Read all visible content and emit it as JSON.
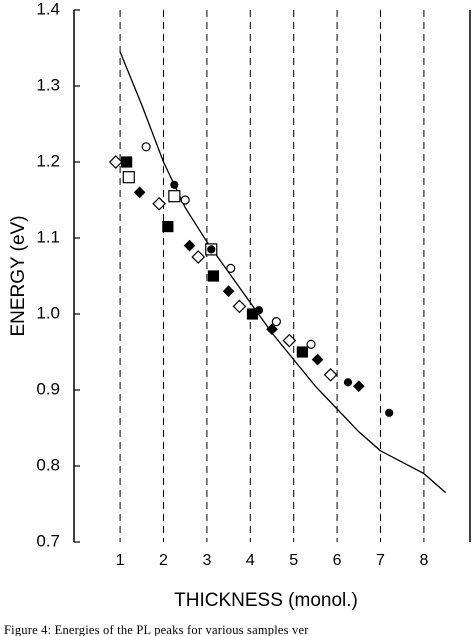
{
  "chart_data": {
    "type": "scatter",
    "title": "",
    "xlabel": "THICKNESS (monol.)",
    "ylabel": "ENERGY (eV)",
    "xlim": [
      0,
      8.5
    ],
    "ylim": [
      0.7,
      1.4
    ],
    "x_ticks": [
      "1",
      "2",
      "3",
      "4",
      "5",
      "6",
      "7",
      "8"
    ],
    "y_ticks": [
      "0.7",
      "0.8",
      "0.9",
      "1.0",
      "1.1",
      "1.2",
      "1.3",
      "1.4"
    ],
    "grid": "dashed vertical lines at each integer thickness",
    "series": [
      {
        "marker": "curve",
        "x": [
          1.0,
          1.5,
          2.0,
          2.5,
          3.0,
          3.5,
          4.0,
          4.5,
          5.0,
          5.5,
          6.0,
          6.5,
          7.0,
          7.5,
          8.0,
          8.5
        ],
        "y": [
          1.345,
          1.275,
          1.2,
          1.14,
          1.095,
          1.055,
          1.015,
          0.975,
          0.94,
          0.905,
          0.875,
          0.845,
          0.82,
          0.805,
          0.79,
          0.765
        ]
      },
      {
        "marker": "open-diamond",
        "x": [
          0.9,
          1.9,
          2.8,
          3.75,
          4.9,
          5.85
        ],
        "y": [
          1.2,
          1.145,
          1.075,
          1.01,
          0.965,
          0.92
        ]
      },
      {
        "marker": "open-square",
        "x": [
          1.2,
          2.25,
          3.1
        ],
        "y": [
          1.18,
          1.155,
          1.085
        ]
      },
      {
        "marker": "filled-square",
        "x": [
          1.15,
          2.1,
          3.15,
          4.05,
          5.2
        ],
        "y": [
          1.2,
          1.115,
          1.05,
          1.0,
          0.95
        ]
      },
      {
        "marker": "filled-diamond",
        "x": [
          1.45,
          2.6,
          3.5,
          4.5,
          5.55,
          6.5
        ],
        "y": [
          1.16,
          1.09,
          1.03,
          0.98,
          0.94,
          0.905
        ]
      },
      {
        "marker": "open-circle",
        "x": [
          1.6,
          2.5,
          3.55,
          4.6,
          5.4
        ],
        "y": [
          1.22,
          1.15,
          1.06,
          0.99,
          0.96
        ]
      },
      {
        "marker": "filled-circle",
        "x": [
          2.25,
          3.1,
          4.2,
          6.25,
          7.2
        ],
        "y": [
          1.17,
          1.085,
          1.005,
          0.91,
          0.87
        ]
      }
    ]
  },
  "caption": "Figure 4: Energies of the PL peaks for various samples ver"
}
